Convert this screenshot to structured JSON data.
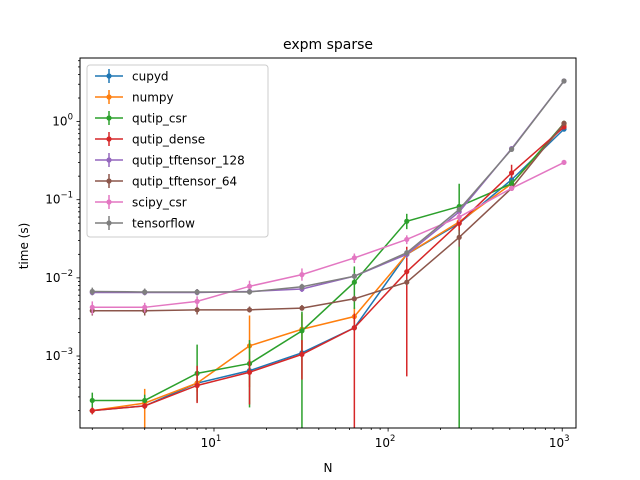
{
  "chart_data": {
    "type": "line",
    "title": "expm sparse",
    "xlabel": "N",
    "ylabel": "time (s)",
    "xscale": "log",
    "yscale": "log",
    "xlim": [
      1.7,
      1200
    ],
    "ylim": [
      0.00012,
      6.5
    ],
    "grid": false,
    "legend_position": "upper-left",
    "x": [
      2,
      4,
      8,
      16,
      32,
      64,
      128,
      256,
      512,
      1024
    ],
    "x_tick_labels": [
      {
        "value": 10,
        "base": "10",
        "exp": "1"
      },
      {
        "value": 100,
        "base": "10",
        "exp": "2"
      },
      {
        "value": 1000,
        "base": "10",
        "exp": "3"
      }
    ],
    "y_tick_labels": [
      {
        "value": 0.001,
        "base": "10",
        "exp": "−3"
      },
      {
        "value": 0.01,
        "base": "10",
        "exp": "−2"
      },
      {
        "value": 0.1,
        "base": "10",
        "exp": "−1"
      },
      {
        "value": 1,
        "base": "10",
        "exp": "0"
      }
    ],
    "series": [
      {
        "name": "cupyd",
        "color": "#1f77b4",
        "values": [
          0.0002,
          0.00023,
          0.00045,
          0.00065,
          0.0011,
          0.0023,
          0.02,
          0.05,
          0.18,
          0.8
        ],
        "err_low": [
          0.00018,
          0.00021,
          0.00041,
          0.0006,
          0.001,
          0.0021,
          0.018,
          0.045,
          0.16,
          0.75
        ],
        "err_high": [
          0.00022,
          0.00025,
          0.0005,
          0.0007,
          0.0012,
          0.0025,
          0.022,
          0.055,
          0.2,
          0.85
        ]
      },
      {
        "name": "numpy",
        "color": "#ff7f0e",
        "values": [
          0.0002,
          0.00025,
          0.00045,
          0.00135,
          0.0022,
          0.0032,
          0.02,
          0.052,
          0.16,
          0.9
        ],
        "err_low": [
          0.00018,
          0.00012,
          0.00035,
          0.0004,
          0.0012,
          0.0023,
          0.017,
          0.045,
          0.14,
          0.85
        ],
        "err_high": [
          0.00022,
          0.00038,
          0.00055,
          0.0033,
          0.0035,
          0.0042,
          0.023,
          0.06,
          0.18,
          0.95
        ]
      },
      {
        "name": "qutip_csr",
        "color": "#2ca02c",
        "values": [
          0.00027,
          0.00027,
          0.0006,
          0.0008,
          0.0021,
          0.0088,
          0.053,
          0.082,
          0.16,
          0.95
        ],
        "err_low": [
          0.00021,
          0.00022,
          0.00026,
          0.00022,
          0.0001,
          0.004,
          0.042,
          0.0001,
          0.14,
          0.9
        ],
        "err_high": [
          0.00034,
          0.00032,
          0.0014,
          0.0016,
          0.0037,
          0.014,
          0.066,
          0.16,
          0.18,
          1.0
        ]
      },
      {
        "name": "qutip_dense",
        "color": "#d62728",
        "values": [
          0.0002,
          0.00023,
          0.00042,
          0.00062,
          0.00105,
          0.0023,
          0.012,
          0.05,
          0.22,
          0.85
        ],
        "err_low": [
          0.00018,
          0.00021,
          0.00025,
          0.00024,
          0.0005,
          0.0001,
          0.00055,
          0.04,
          0.19,
          0.8
        ],
        "err_high": [
          0.00022,
          0.00025,
          0.00075,
          0.0009,
          0.0016,
          0.0035,
          0.025,
          0.06,
          0.28,
          0.9
        ]
      },
      {
        "name": "qutip_tftensor_128",
        "color": "#9467bd",
        "values": [
          0.0065,
          0.0065,
          0.0065,
          0.0067,
          0.0072,
          0.0105,
          0.02,
          0.07,
          0.45,
          3.3
        ],
        "err_low": [
          0.006,
          0.006,
          0.006,
          0.0062,
          0.0066,
          0.0098,
          0.018,
          0.065,
          0.42,
          3.2
        ],
        "err_high": [
          0.0072,
          0.0072,
          0.0072,
          0.0074,
          0.0079,
          0.0112,
          0.022,
          0.075,
          0.48,
          3.4
        ]
      },
      {
        "name": "qutip_tftensor_64",
        "color": "#8c564b",
        "values": [
          0.0038,
          0.0038,
          0.0039,
          0.0039,
          0.0041,
          0.0054,
          0.0088,
          0.033,
          0.14,
          0.95
        ],
        "err_low": [
          0.0033,
          0.0033,
          0.0034,
          0.0036,
          0.0038,
          0.005,
          0.008,
          0.025,
          0.13,
          0.9
        ],
        "err_high": [
          0.0043,
          0.0043,
          0.0044,
          0.0043,
          0.0045,
          0.0059,
          0.0097,
          0.041,
          0.15,
          1.0
        ]
      },
      {
        "name": "scipy_csr",
        "color": "#e377c2",
        "values": [
          0.0042,
          0.0042,
          0.005,
          0.0078,
          0.011,
          0.018,
          0.031,
          0.06,
          0.14,
          0.3
        ],
        "err_low": [
          0.0034,
          0.0036,
          0.0042,
          0.0065,
          0.0092,
          0.0155,
          0.027,
          0.052,
          0.13,
          0.28
        ],
        "err_high": [
          0.005,
          0.0048,
          0.0058,
          0.0092,
          0.0132,
          0.0205,
          0.035,
          0.068,
          0.15,
          0.32
        ]
      },
      {
        "name": "tensorflow",
        "color": "#7f7f7f",
        "values": [
          0.0067,
          0.0066,
          0.0066,
          0.0066,
          0.0077,
          0.0105,
          0.021,
          0.075,
          0.44,
          3.3
        ],
        "err_low": [
          0.006,
          0.006,
          0.006,
          0.0061,
          0.007,
          0.0098,
          0.019,
          0.07,
          0.42,
          3.2
        ],
        "err_high": [
          0.0075,
          0.0073,
          0.0072,
          0.0072,
          0.0084,
          0.0112,
          0.023,
          0.08,
          0.46,
          3.4
        ]
      }
    ]
  }
}
